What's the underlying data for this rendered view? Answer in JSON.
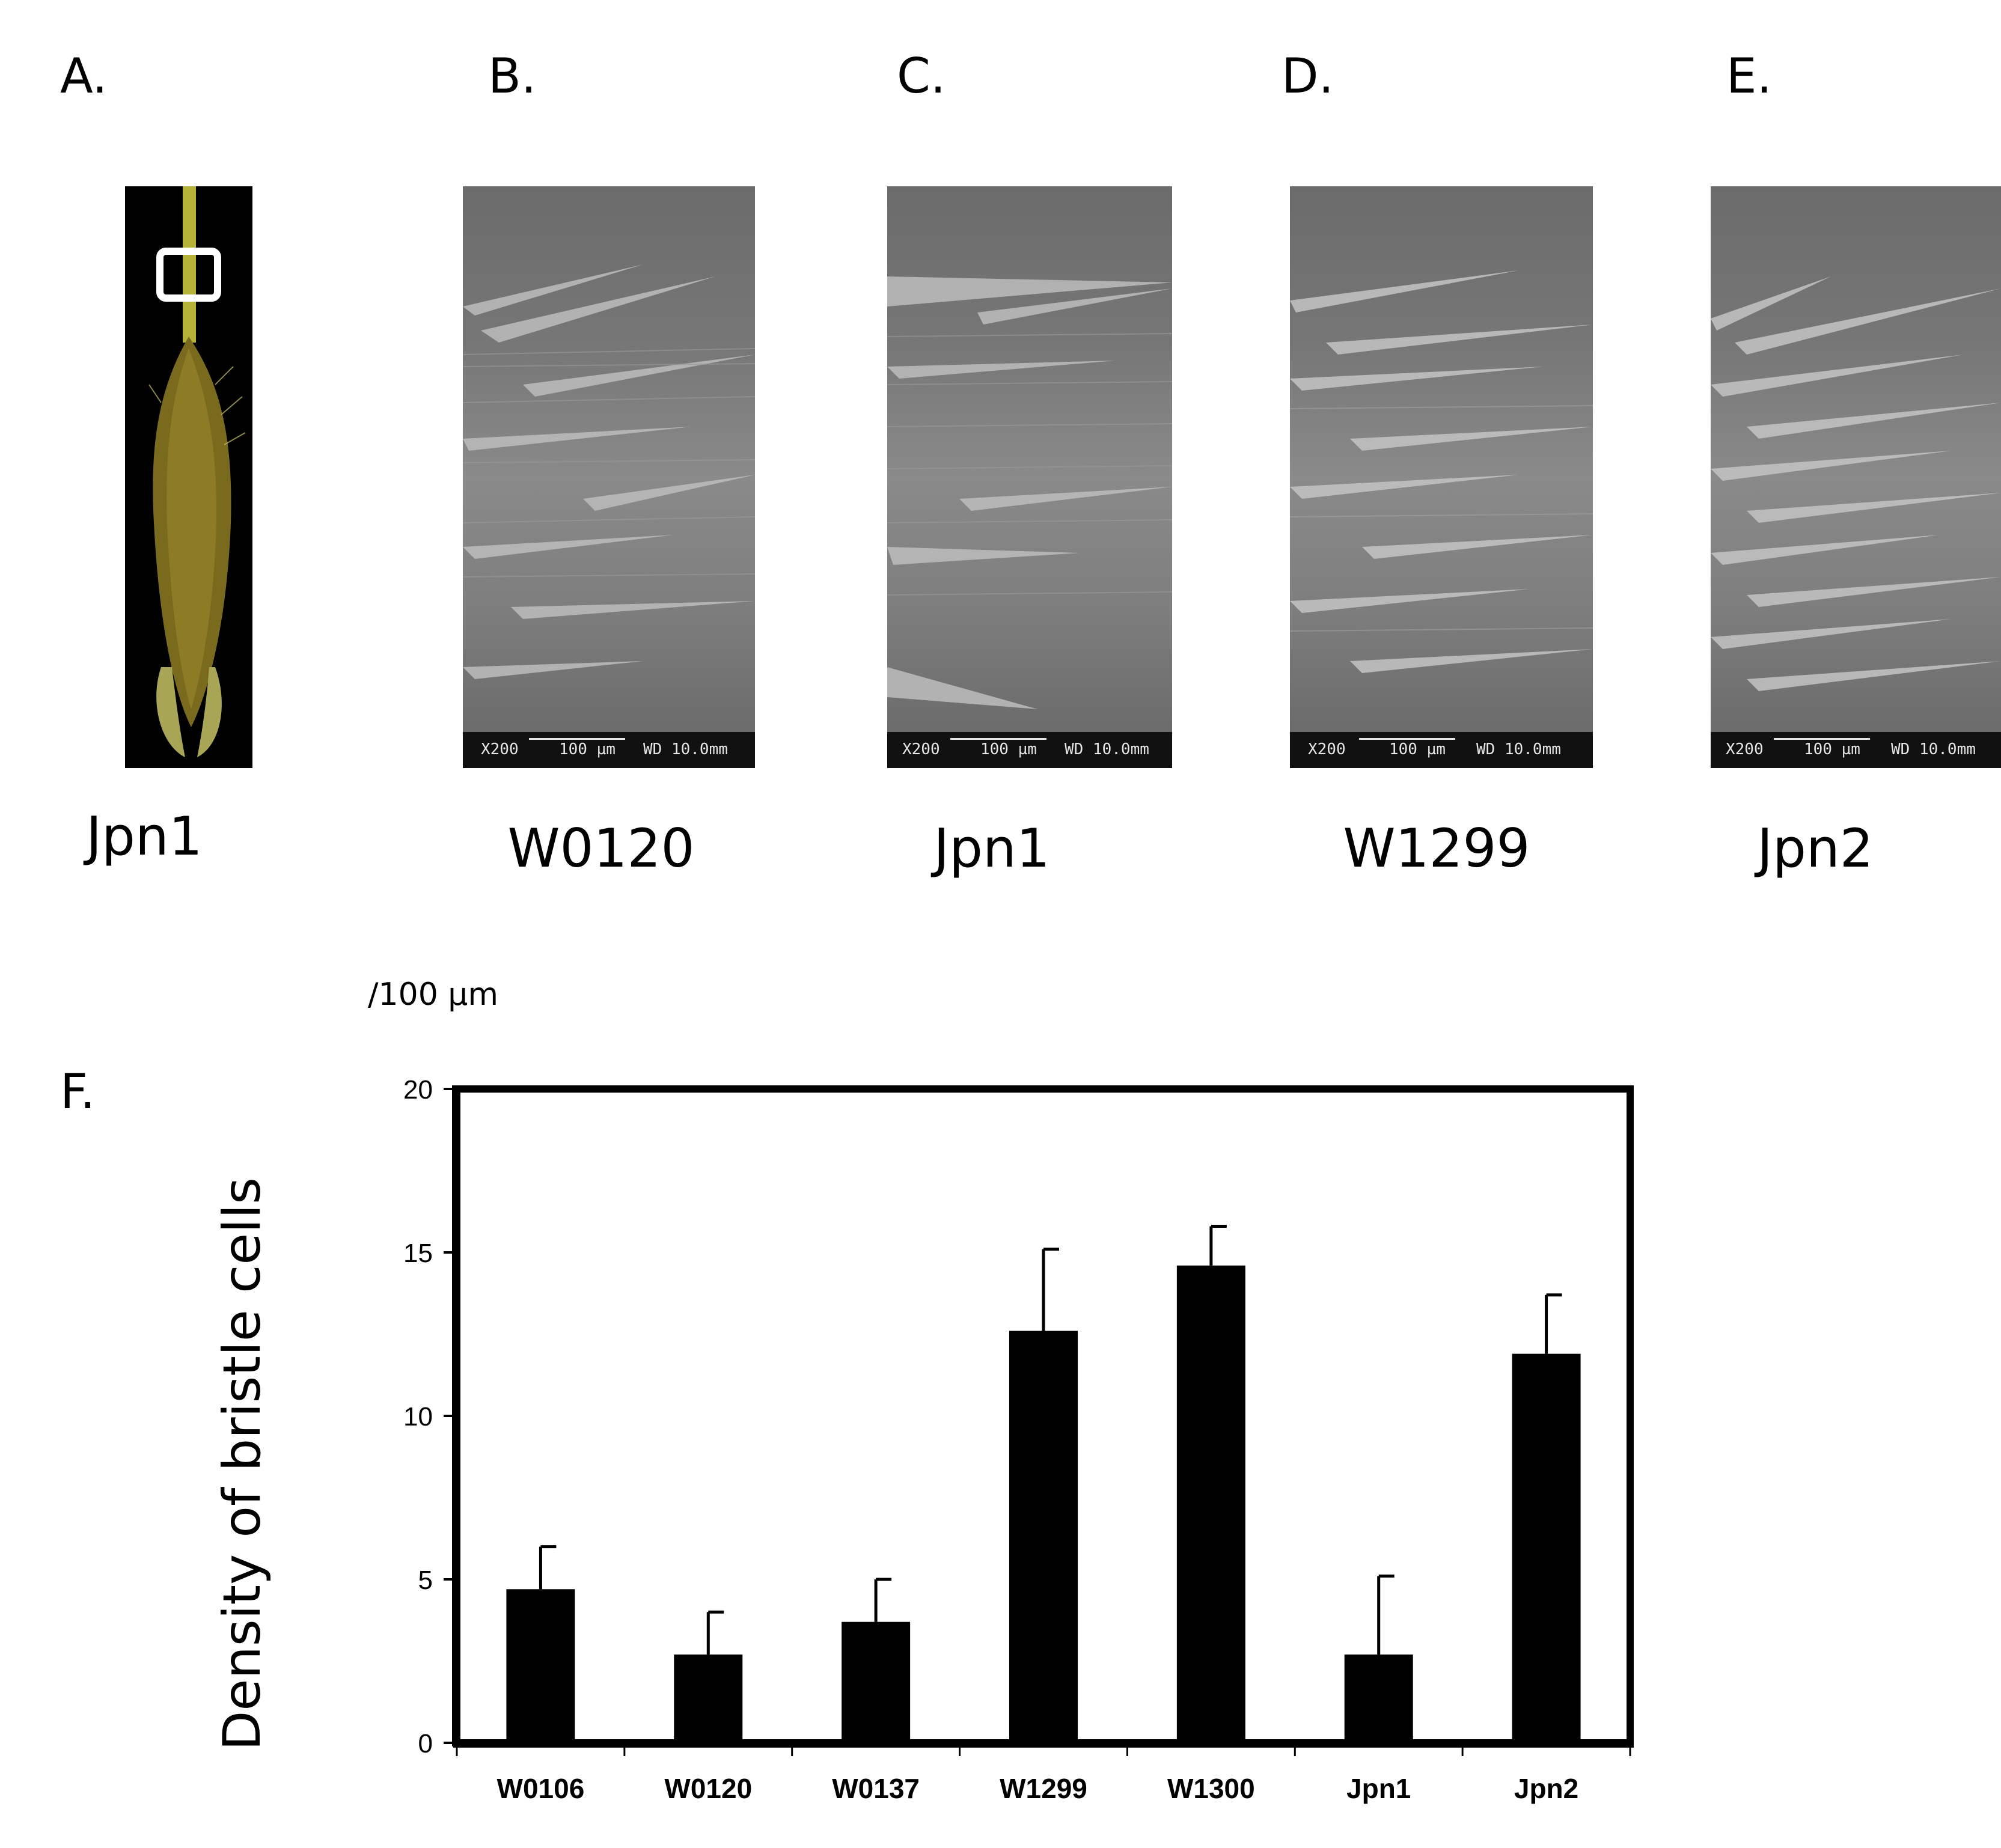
{
  "panels": {
    "a": {
      "letter": "A.",
      "caption": "Jpn1"
    },
    "b": {
      "letter": "B.",
      "caption": "W0120",
      "scale_mag": "X200",
      "scale_len": "100 µm",
      "scale_wd": "WD 10.0mm"
    },
    "c": {
      "letter": "C.",
      "caption": "Jpn1",
      "scale_mag": "X200",
      "scale_len": "100 µm",
      "scale_wd": "WD 10.0mm"
    },
    "d": {
      "letter": "D.",
      "caption": "W1299",
      "scale_mag": "X200",
      "scale_len": "100 µm",
      "scale_wd": "WD 10.0mm"
    },
    "e": {
      "letter": "E.",
      "caption": "Jpn2",
      "scale_mag": "X200",
      "scale_len": "100 µm",
      "scale_wd": "WD 10.0mm"
    },
    "f": {
      "letter": "F."
    }
  },
  "chart_data": {
    "type": "bar",
    "unit_label": "/100 µm",
    "ylabel": "Density of bristle cells",
    "xlabel": "",
    "categories": [
      "W0106",
      "W0120",
      "W0137",
      "W1299",
      "W1300",
      "Jpn1",
      "Jpn2"
    ],
    "values": [
      4.7,
      2.7,
      3.7,
      12.6,
      14.6,
      2.7,
      11.9
    ],
    "errors": [
      1.3,
      1.3,
      1.3,
      2.5,
      1.2,
      2.4,
      1.8
    ],
    "ylim": [
      0,
      20
    ],
    "yticks": [
      0,
      5,
      10,
      15,
      20
    ],
    "bar_color": "#000000",
    "grid": false
  }
}
